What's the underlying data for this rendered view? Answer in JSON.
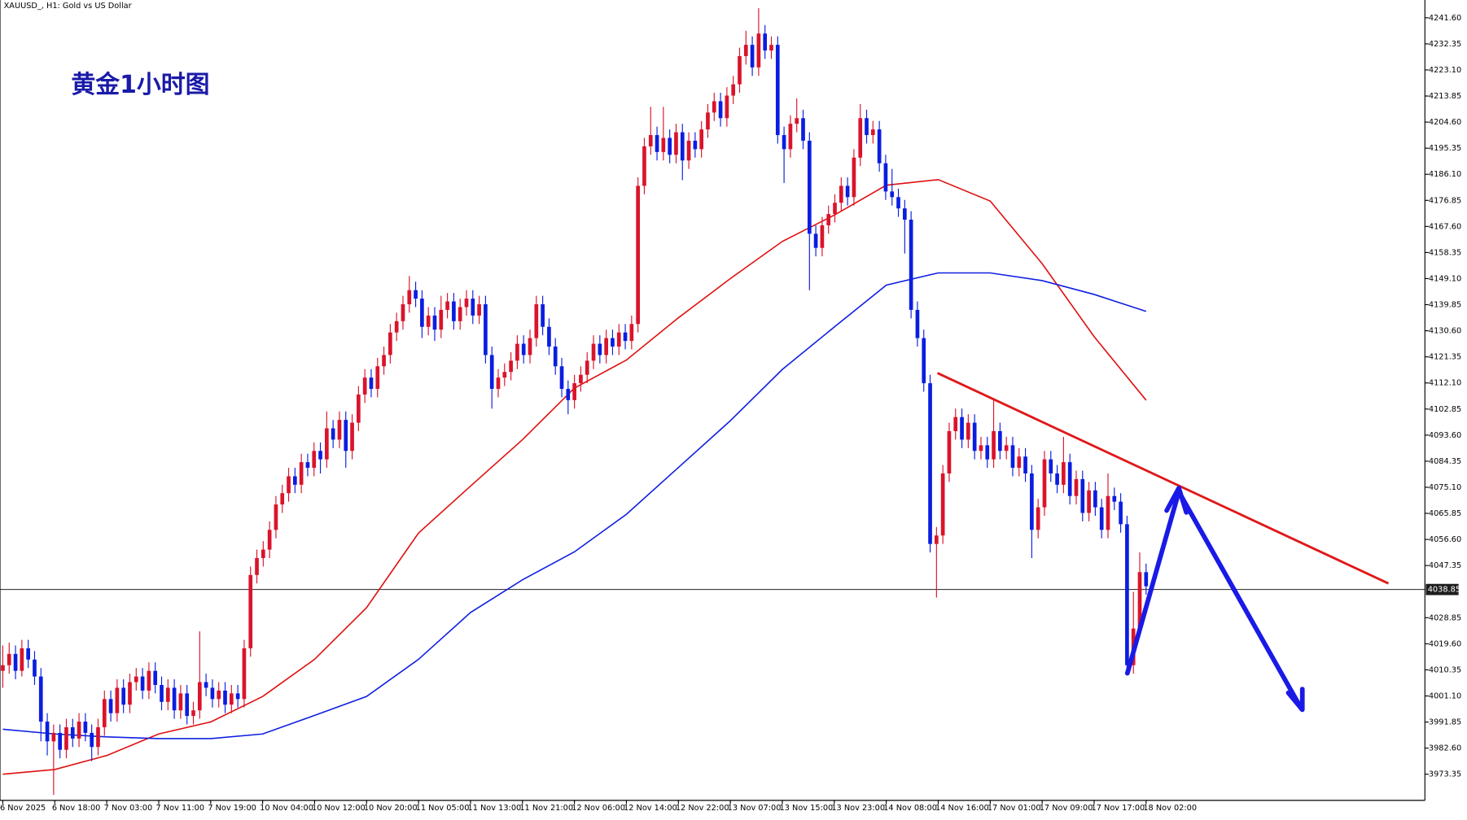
{
  "chart_data": {
    "type": "candlestick",
    "title": "XAUUSD_, H1:  Gold vs US Dollar",
    "annotation": "黄金1小时图",
    "up_color": "#d9142c",
    "down_color": "#0a1ee0",
    "ylim": [
      3964.07,
      4247.9
    ],
    "yticks": [
      {
        "value": 4241.6,
        "label": "4241.60"
      },
      {
        "value": 4232.35,
        "label": "4232.35"
      },
      {
        "value": 4223.1,
        "label": "4223.10"
      },
      {
        "value": 4213.85,
        "label": "4213.85"
      },
      {
        "value": 4204.6,
        "label": "4204.60"
      },
      {
        "value": 4195.35,
        "label": "4195.35"
      },
      {
        "value": 4186.1,
        "label": "4186.10"
      },
      {
        "value": 4176.85,
        "label": "4176.85"
      },
      {
        "value": 4167.6,
        "label": "4167.60"
      },
      {
        "value": 4158.35,
        "label": "4158.35"
      },
      {
        "value": 4149.1,
        "label": "4149.10"
      },
      {
        "value": 4139.85,
        "label": "4139.85"
      },
      {
        "value": 4130.6,
        "label": "4130.60"
      },
      {
        "value": 4121.35,
        "label": "4121.35"
      },
      {
        "value": 4112.1,
        "label": "4112.10"
      },
      {
        "value": 4102.85,
        "label": "4102.85"
      },
      {
        "value": 4093.6,
        "label": "4093.60"
      },
      {
        "value": 4084.35,
        "label": "4084.35"
      },
      {
        "value": 4075.1,
        "label": "4075.10"
      },
      {
        "value": 4065.85,
        "label": "4065.85"
      },
      {
        "value": 4056.6,
        "label": "4056.60"
      },
      {
        "value": 4047.35,
        "label": "4047.35"
      },
      {
        "value": 4028.85,
        "label": "4028.85"
      },
      {
        "value": 4019.6,
        "label": "4019.60"
      },
      {
        "value": 4010.35,
        "label": "4010.35"
      },
      {
        "value": 4001.1,
        "label": "4001.10"
      },
      {
        "value": 3991.85,
        "label": "3991.85"
      },
      {
        "value": 3982.6,
        "label": "3982.60"
      },
      {
        "value": 3973.35,
        "label": "3973.35"
      }
    ],
    "current_price": 4038.85,
    "x_labels": [
      "6 Nov 2025",
      "6 Nov 18:00",
      "7 Nov 03:00",
      "7 Nov 11:00",
      "7 Nov 19:00",
      "10 Nov 04:00",
      "10 Nov 12:00",
      "10 Nov 20:00",
      "11 Nov 05:00",
      "11 Nov 13:00",
      "11 Nov 21:00",
      "12 Nov 06:00",
      "12 Nov 14:00",
      "12 Nov 22:00",
      "13 Nov 07:00",
      "13 Nov 15:00",
      "13 Nov 23:00",
      "14 Nov 08:00",
      "14 Nov 16:00",
      "17 Nov 01:00",
      "17 Nov 09:00",
      "17 Nov 17:00",
      "18 Nov 02:00"
    ],
    "lines": [
      {
        "color": "#e01010",
        "values": [
          3973.35,
          3975.0,
          3980.0,
          3987.6,
          3991.9,
          4000.9,
          4014.1,
          4032.4,
          4058.9,
          4075.5,
          4092.0,
          4110.3,
          4120.2,
          4135.2,
          4149.1,
          4162.3,
          4171.6,
          4182.2,
          4184.2,
          4176.6,
          4154.4,
          4128.5,
          4106.0
        ]
      },
      {
        "color": "#1020e0",
        "values": [
          3989.3,
          3987.6,
          3986.6,
          3986.0,
          3986.0,
          3987.6,
          3994.2,
          4000.9,
          4014.1,
          4030.7,
          4042.3,
          4052.2,
          4065.5,
          4082.1,
          4098.7,
          4116.9,
          4131.9,
          4146.8,
          4151.1,
          4151.1,
          4148.4,
          4143.5,
          4137.5
        ]
      }
    ],
    "candles": [
      [
        4010,
        4019,
        4004,
        4012
      ],
      [
        4012,
        4020,
        4009,
        4016
      ],
      [
        4016,
        4019,
        4007,
        4010
      ],
      [
        4010,
        4021,
        4008,
        4018
      ],
      [
        4018,
        4021,
        4011,
        4014
      ],
      [
        4014,
        4017,
        4005,
        4008
      ],
      [
        4008,
        4011,
        3985,
        3992
      ],
      [
        3992,
        3995,
        3980,
        3985
      ],
      [
        3985,
        3991,
        3966,
        3988
      ],
      [
        3988,
        3991,
        3979,
        3982
      ],
      [
        3982,
        3993,
        3979,
        3990
      ],
      [
        3990,
        3993,
        3983,
        3986
      ],
      [
        3986,
        3995,
        3983,
        3992
      ],
      [
        3992,
        3995,
        3985,
        3988
      ],
      [
        3988,
        3991,
        3978,
        3983
      ],
      [
        3983,
        3993,
        3980,
        3990
      ],
      [
        3990,
        4003,
        3987,
        4000
      ],
      [
        4000,
        4003,
        3992,
        3995
      ],
      [
        3995,
        4007,
        3992,
        4004
      ],
      [
        4004,
        4007,
        3995,
        3998
      ],
      [
        3998,
        4009,
        3995,
        4006
      ],
      [
        4006,
        4011,
        4003,
        4008
      ],
      [
        4008,
        4011,
        4000,
        4003
      ],
      [
        4003,
        4013,
        4000,
        4010
      ],
      [
        4010,
        4013,
        4002,
        4005
      ],
      [
        4005,
        4008,
        3996,
        3999
      ],
      [
        3999,
        4007,
        3996,
        4004
      ],
      [
        4004,
        4007,
        3993,
        3996
      ],
      [
        3996,
        4005,
        3993,
        4002
      ],
      [
        4002,
        4005,
        3991,
        3994
      ],
      [
        3994,
        3999,
        3991,
        3996
      ],
      [
        3996,
        4024,
        3993,
        4006
      ],
      [
        4006,
        4009,
        4001,
        4004
      ],
      [
        4004,
        4007,
        3997,
        4000
      ],
      [
        4000,
        4006,
        3997,
        4003
      ],
      [
        4003,
        4006,
        3995,
        3998
      ],
      [
        3998,
        4005,
        3995,
        4002
      ],
      [
        4002,
        4005,
        3997,
        4000
      ],
      [
        4000,
        4021,
        3997,
        4018
      ],
      [
        4018,
        4047,
        4015,
        4044
      ],
      [
        4044,
        4053,
        4041,
        4050
      ],
      [
        4050,
        4056,
        4047,
        4053
      ],
      [
        4053,
        4063,
        4050,
        4060
      ],
      [
        4060,
        4072,
        4057,
        4069
      ],
      [
        4069,
        4076,
        4066,
        4073
      ],
      [
        4073,
        4082,
        4070,
        4079
      ],
      [
        4079,
        4082,
        4073,
        4076
      ],
      [
        4076,
        4087,
        4073,
        4084
      ],
      [
        4084,
        4087,
        4079,
        4082
      ],
      [
        4082,
        4091,
        4079,
        4088
      ],
      [
        4088,
        4091,
        4080,
        4085
      ],
      [
        4085,
        4102,
        4082,
        4096
      ],
      [
        4096,
        4099,
        4089,
        4092
      ],
      [
        4092,
        4102,
        4089,
        4099
      ],
      [
        4099,
        4102,
        4082,
        4088
      ],
      [
        4088,
        4101,
        4085,
        4098
      ],
      [
        4098,
        4111,
        4095,
        4108
      ],
      [
        4108,
        4117,
        4105,
        4114
      ],
      [
        4114,
        4117,
        4107,
        4110
      ],
      [
        4110,
        4121,
        4107,
        4118
      ],
      [
        4118,
        4125,
        4115,
        4122
      ],
      [
        4122,
        4133,
        4119,
        4130
      ],
      [
        4130,
        4137,
        4127,
        4134
      ],
      [
        4134,
        4143,
        4131,
        4140
      ],
      [
        4140,
        4150,
        4137,
        4145
      ],
      [
        4145,
        4148,
        4139,
        4142
      ],
      [
        4142,
        4145,
        4128,
        4132
      ],
      [
        4132,
        4139,
        4129,
        4136
      ],
      [
        4136,
        4139,
        4127,
        4131
      ],
      [
        4131,
        4143,
        4128,
        4138
      ],
      [
        4138,
        4144,
        4135,
        4141
      ],
      [
        4141,
        4144,
        4131,
        4134
      ],
      [
        4134,
        4142,
        4131,
        4139
      ],
      [
        4139,
        4145,
        4136,
        4142
      ],
      [
        4142,
        4145,
        4133,
        4136
      ],
      [
        4136,
        4143,
        4133,
        4140
      ],
      [
        4140,
        4143,
        4119,
        4122
      ],
      [
        4122,
        4125,
        4103,
        4110
      ],
      [
        4110,
        4117,
        4107,
        4114
      ],
      [
        4114,
        4119,
        4111,
        4116
      ],
      [
        4116,
        4123,
        4113,
        4120
      ],
      [
        4120,
        4129,
        4117,
        4126
      ],
      [
        4126,
        4129,
        4119,
        4122
      ],
      [
        4122,
        4131,
        4119,
        4128
      ],
      [
        4128,
        4143,
        4125,
        4140
      ],
      [
        4140,
        4143,
        4129,
        4132
      ],
      [
        4132,
        4135,
        4122,
        4125
      ],
      [
        4125,
        4128,
        4115,
        4118
      ],
      [
        4118,
        4121,
        4107,
        4110
      ],
      [
        4110,
        4113,
        4101,
        4106
      ],
      [
        4106,
        4115,
        4103,
        4112
      ],
      [
        4112,
        4118,
        4109,
        4115
      ],
      [
        4115,
        4123,
        4112,
        4120
      ],
      [
        4120,
        4129,
        4117,
        4126
      ],
      [
        4126,
        4129,
        4119,
        4122
      ],
      [
        4122,
        4131,
        4119,
        4128
      ],
      [
        4128,
        4131,
        4122,
        4125
      ],
      [
        4125,
        4133,
        4122,
        4130
      ],
      [
        4130,
        4133,
        4124,
        4127
      ],
      [
        4127,
        4136,
        4124,
        4133
      ],
      [
        4133,
        4185,
        4130,
        4182
      ],
      [
        4182,
        4199,
        4179,
        4196
      ],
      [
        4196,
        4210,
        4193,
        4200
      ],
      [
        4200,
        4203,
        4191,
        4194
      ],
      [
        4194,
        4210,
        4191,
        4199
      ],
      [
        4199,
        4202,
        4190,
        4193
      ],
      [
        4193,
        4204,
        4190,
        4201
      ],
      [
        4201,
        4204,
        4184,
        4191
      ],
      [
        4191,
        4201,
        4188,
        4198
      ],
      [
        4198,
        4201,
        4192,
        4195
      ],
      [
        4195,
        4205,
        4192,
        4202
      ],
      [
        4202,
        4211,
        4199,
        4208
      ],
      [
        4208,
        4215,
        4205,
        4212
      ],
      [
        4212,
        4215,
        4203,
        4206
      ],
      [
        4206,
        4217,
        4203,
        4214
      ],
      [
        4214,
        4221,
        4211,
        4218
      ],
      [
        4218,
        4231,
        4215,
        4228
      ],
      [
        4228,
        4237,
        4225,
        4232
      ],
      [
        4232,
        4235,
        4221,
        4224
      ],
      [
        4224,
        4245,
        4221,
        4236
      ],
      [
        4236,
        4239,
        4227,
        4230
      ],
      [
        4230,
        4235,
        4227,
        4232
      ],
      [
        4232,
        4235,
        4197,
        4200
      ],
      [
        4200,
        4203,
        4183,
        4195
      ],
      [
        4195,
        4207,
        4192,
        4204
      ],
      [
        4204,
        4213,
        4201,
        4206
      ],
      [
        4206,
        4209,
        4195,
        4198
      ],
      [
        4198,
        4201,
        4145,
        4165
      ],
      [
        4165,
        4168,
        4157,
        4160
      ],
      [
        4160,
        4171,
        4157,
        4168
      ],
      [
        4168,
        4175,
        4165,
        4172
      ],
      [
        4172,
        4179,
        4169,
        4176
      ],
      [
        4176,
        4185,
        4173,
        4182
      ],
      [
        4182,
        4185,
        4175,
        4178
      ],
      [
        4178,
        4195,
        4175,
        4192
      ],
      [
        4192,
        4211,
        4189,
        4206
      ],
      [
        4206,
        4209,
        4197,
        4200
      ],
      [
        4200,
        4205,
        4197,
        4202
      ],
      [
        4202,
        4205,
        4187,
        4190
      ],
      [
        4190,
        4193,
        4177,
        4180
      ],
      [
        4180,
        4188,
        4175,
        4178
      ],
      [
        4178,
        4181,
        4171,
        4174
      ],
      [
        4174,
        4177,
        4158,
        4170
      ],
      [
        4170,
        4173,
        4135,
        4138
      ],
      [
        4138,
        4141,
        4125,
        4128
      ],
      [
        4128,
        4131,
        4109,
        4112
      ],
      [
        4112,
        4115,
        4052,
        4055
      ],
      [
        4055,
        4061,
        4036,
        4058
      ],
      [
        4058,
        4083,
        4055,
        4080
      ],
      [
        4080,
        4098,
        4077,
        4095
      ],
      [
        4095,
        4103,
        4092,
        4100
      ],
      [
        4100,
        4103,
        4089,
        4092
      ],
      [
        4092,
        4101,
        4089,
        4098
      ],
      [
        4098,
        4101,
        4085,
        4088
      ],
      [
        4088,
        4093,
        4085,
        4090
      ],
      [
        4090,
        4093,
        4082,
        4085
      ],
      [
        4085,
        4106,
        4082,
        4095
      ],
      [
        4095,
        4098,
        4085,
        4088
      ],
      [
        4088,
        4093,
        4085,
        4090
      ],
      [
        4090,
        4093,
        4079,
        4082
      ],
      [
        4082,
        4089,
        4079,
        4086
      ],
      [
        4086,
        4089,
        4077,
        4080
      ],
      [
        4080,
        4083,
        4050,
        4060
      ],
      [
        4060,
        4071,
        4057,
        4068
      ],
      [
        4068,
        4088,
        4065,
        4085
      ],
      [
        4085,
        4088,
        4077,
        4080
      ],
      [
        4080,
        4083,
        4073,
        4076
      ],
      [
        4076,
        4093,
        4073,
        4084
      ],
      [
        4084,
        4087,
        4069,
        4072
      ],
      [
        4072,
        4081,
        4069,
        4078
      ],
      [
        4078,
        4081,
        4063,
        4066
      ],
      [
        4066,
        4077,
        4063,
        4074
      ],
      [
        4074,
        4077,
        4065,
        4068
      ],
      [
        4068,
        4071,
        4057,
        4060
      ],
      [
        4060,
        4080,
        4057,
        4072
      ],
      [
        4072,
        4075,
        4067,
        4070
      ],
      [
        4070,
        4073,
        4059,
        4062
      ],
      [
        4062,
        4065,
        4009,
        4012
      ],
      [
        4012,
        4038,
        4009,
        4025
      ],
      [
        4025,
        4052,
        4022,
        4045
      ],
      [
        4045,
        4048,
        4037,
        4040
      ]
    ]
  }
}
